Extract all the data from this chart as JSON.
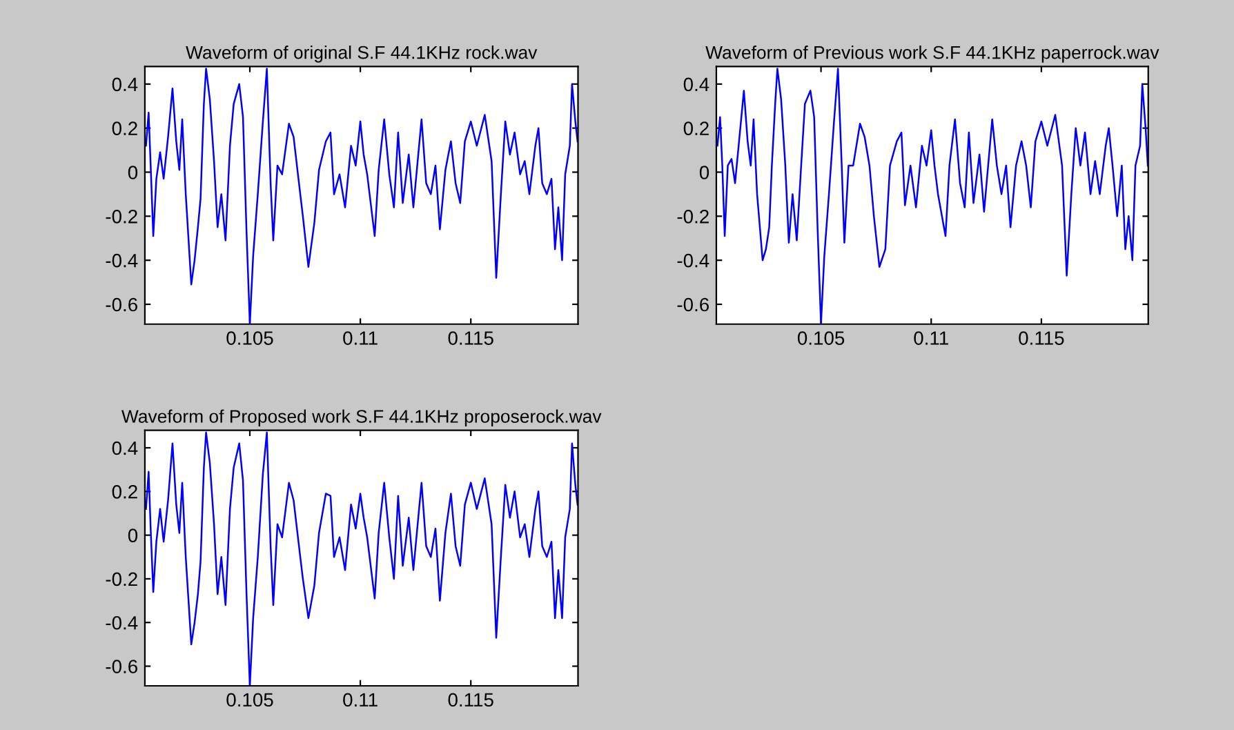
{
  "chart_data": [
    {
      "type": "line",
      "title": "Waveform of original S.F 44.1KHz rock.wav",
      "xlim": [
        0.10025,
        0.11985
      ],
      "ylim": [
        -0.69,
        0.48
      ],
      "xticks": [
        0.105,
        0.11,
        0.115
      ],
      "yticks": [
        -0.6,
        -0.4,
        -0.2,
        0,
        0.2,
        0.4
      ],
      "grid": false,
      "legend": false,
      "series": [
        {
          "color": "#0000ff",
          "x": [
            0.1003,
            0.10042,
            0.10052,
            0.10063,
            0.10077,
            0.10094,
            0.1011,
            0.1013,
            0.1015,
            0.10167,
            0.10181,
            0.10194,
            0.1021,
            0.10235,
            0.1025,
            0.10265,
            0.10277,
            0.10292,
            0.10302,
            0.10319,
            0.10338,
            0.10354,
            0.10371,
            0.1039,
            0.1041,
            0.10427,
            0.10452,
            0.10469,
            0.10485,
            0.105,
            0.10515,
            0.10536,
            0.10559,
            0.10577,
            0.10594,
            0.10606,
            0.10625,
            0.10646,
            0.10677,
            0.10698,
            0.1072,
            0.1074,
            0.10765,
            0.10792,
            0.10813,
            0.10844,
            0.10865,
            0.10881,
            0.10906,
            0.10931,
            0.10958,
            0.10979,
            0.11,
            0.11015,
            0.11031,
            0.11065,
            0.11083,
            0.11108,
            0.11131,
            0.11152,
            0.11171,
            0.11192,
            0.11219,
            0.1124,
            0.11277,
            0.11298,
            0.11319,
            0.1134,
            0.1136,
            0.11385,
            0.1141,
            0.11431,
            0.11452,
            0.11473,
            0.115,
            0.11527,
            0.11563,
            0.11594,
            0.11615,
            0.11636,
            0.11656,
            0.11677,
            0.11698,
            0.11723,
            0.11744,
            0.11765,
            0.11792,
            0.11806,
            0.11823,
            0.11844,
            0.11865,
            0.11881,
            0.11896,
            0.11913,
            0.11927,
            0.11948,
            0.11958,
            0.11973,
            0.11983
          ],
          "values": [
            0.12,
            0.27,
            0.01,
            -0.29,
            -0.03,
            0.09,
            -0.03,
            0.16,
            0.38,
            0.14,
            0.01,
            0.24,
            -0.1,
            -0.51,
            -0.4,
            -0.25,
            -0.12,
            0.31,
            0.47,
            0.33,
            0.05,
            -0.25,
            -0.1,
            -0.31,
            0.12,
            0.31,
            0.4,
            0.25,
            -0.27,
            -0.69,
            -0.38,
            -0.1,
            0.23,
            0.47,
            -0.05,
            -0.31,
            0.03,
            -0.01,
            0.22,
            0.16,
            -0.03,
            -0.2,
            -0.43,
            -0.23,
            0.01,
            0.14,
            0.18,
            -0.1,
            -0.01,
            -0.16,
            0.12,
            0.03,
            0.23,
            0.08,
            -0.01,
            -0.29,
            0.01,
            0.24,
            -0.01,
            -0.16,
            0.18,
            -0.14,
            0.08,
            -0.16,
            0.24,
            -0.05,
            -0.1,
            0.03,
            -0.26,
            0.01,
            0.14,
            -0.05,
            -0.14,
            0.14,
            0.23,
            0.12,
            0.26,
            0.05,
            -0.48,
            -0.1,
            0.23,
            0.08,
            0.18,
            -0.01,
            0.05,
            -0.1,
            0.12,
            0.2,
            -0.05,
            -0.1,
            -0.03,
            -0.35,
            -0.16,
            -0.4,
            -0.01,
            0.12,
            0.4,
            0.23,
            0.14
          ]
        }
      ]
    },
    {
      "type": "line",
      "title": "Waveform of Previous work S.F 44.1KHz paperrock.wav",
      "xlim": [
        0.10025,
        0.11985
      ],
      "ylim": [
        -0.69,
        0.48
      ],
      "xticks": [
        0.105,
        0.11,
        0.115
      ],
      "yticks": [
        -0.6,
        -0.4,
        -0.2,
        0,
        0.2,
        0.4
      ],
      "grid": false,
      "legend": false,
      "series": [
        {
          "color": "#0000ff",
          "x": [
            0.1003,
            0.10042,
            0.10052,
            0.10063,
            0.10077,
            0.10094,
            0.1011,
            0.1013,
            0.1015,
            0.10167,
            0.10181,
            0.10194,
            0.1021,
            0.10235,
            0.1025,
            0.10265,
            0.10277,
            0.10292,
            0.10302,
            0.10319,
            0.10338,
            0.10354,
            0.10371,
            0.1039,
            0.1041,
            0.10427,
            0.10452,
            0.10469,
            0.10485,
            0.105,
            0.10515,
            0.10536,
            0.10559,
            0.10577,
            0.10594,
            0.10606,
            0.10625,
            0.10646,
            0.10677,
            0.10698,
            0.1072,
            0.1074,
            0.10765,
            0.10792,
            0.10813,
            0.10844,
            0.10865,
            0.10881,
            0.10906,
            0.10931,
            0.10958,
            0.10979,
            0.11,
            0.11015,
            0.11031,
            0.11065,
            0.11083,
            0.11108,
            0.11131,
            0.11152,
            0.11171,
            0.11192,
            0.11219,
            0.1124,
            0.11277,
            0.11298,
            0.11319,
            0.1134,
            0.1136,
            0.11385,
            0.1141,
            0.11431,
            0.11452,
            0.11473,
            0.115,
            0.11527,
            0.11563,
            0.11594,
            0.11615,
            0.11636,
            0.11656,
            0.11677,
            0.11698,
            0.11723,
            0.11744,
            0.11765,
            0.11792,
            0.11806,
            0.11823,
            0.11844,
            0.11865,
            0.11881,
            0.11896,
            0.11913,
            0.11927,
            0.11948,
            0.11958,
            0.11973,
            0.11983
          ],
          "values": [
            0.12,
            0.25,
            0.03,
            -0.29,
            0.03,
            0.06,
            -0.05,
            0.16,
            0.37,
            0.14,
            0.03,
            0.24,
            -0.1,
            -0.4,
            -0.35,
            -0.25,
            0.03,
            0.31,
            0.47,
            0.33,
            0.03,
            -0.32,
            -0.1,
            -0.31,
            0.03,
            0.31,
            0.37,
            0.25,
            -0.27,
            -0.69,
            -0.38,
            -0.1,
            0.23,
            0.47,
            0.03,
            -0.32,
            0.03,
            0.03,
            0.22,
            0.16,
            0.03,
            -0.2,
            -0.43,
            -0.35,
            0.03,
            0.14,
            0.18,
            -0.15,
            0.03,
            -0.16,
            0.12,
            0.03,
            0.19,
            0.03,
            -0.1,
            -0.29,
            0.03,
            0.24,
            -0.05,
            -0.16,
            0.18,
            -0.14,
            0.08,
            -0.18,
            0.24,
            0.03,
            -0.1,
            0.03,
            -0.25,
            0.03,
            0.14,
            0.03,
            -0.16,
            0.14,
            0.23,
            0.12,
            0.26,
            0.03,
            -0.47,
            -0.1,
            0.2,
            0.03,
            0.18,
            -0.1,
            0.05,
            -0.1,
            0.12,
            0.2,
            0.03,
            -0.2,
            0.03,
            -0.35,
            -0.2,
            -0.4,
            0.03,
            0.12,
            0.4,
            0.2,
            0.03
          ]
        }
      ]
    },
    {
      "type": "line",
      "title": "Waveform of Proposed work S.F 44.1KHz proposerock.wav",
      "xlim": [
        0.10025,
        0.11985
      ],
      "ylim": [
        -0.69,
        0.48
      ],
      "xticks": [
        0.105,
        0.11,
        0.115
      ],
      "yticks": [
        -0.6,
        -0.4,
        -0.2,
        0,
        0.2,
        0.4
      ],
      "grid": false,
      "legend": false,
      "series": [
        {
          "color": "#0000ff",
          "x": [
            0.1003,
            0.10042,
            0.10052,
            0.10063,
            0.10077,
            0.10094,
            0.1011,
            0.1013,
            0.1015,
            0.10167,
            0.10181,
            0.10194,
            0.1021,
            0.10235,
            0.1025,
            0.10265,
            0.10277,
            0.10292,
            0.10302,
            0.10319,
            0.10338,
            0.10354,
            0.10371,
            0.1039,
            0.1041,
            0.10427,
            0.10452,
            0.10469,
            0.10485,
            0.105,
            0.10515,
            0.10536,
            0.10559,
            0.10577,
            0.10594,
            0.10606,
            0.10625,
            0.10646,
            0.10677,
            0.10698,
            0.1072,
            0.1074,
            0.10765,
            0.10792,
            0.10813,
            0.10844,
            0.10865,
            0.10881,
            0.10906,
            0.10931,
            0.10958,
            0.10979,
            0.11,
            0.11015,
            0.11031,
            0.11065,
            0.11083,
            0.11108,
            0.11131,
            0.11152,
            0.11171,
            0.11192,
            0.11219,
            0.1124,
            0.11277,
            0.11298,
            0.11319,
            0.1134,
            0.1136,
            0.11385,
            0.1141,
            0.11431,
            0.11452,
            0.11473,
            0.115,
            0.11527,
            0.11563,
            0.11594,
            0.11615,
            0.11636,
            0.11656,
            0.11677,
            0.11698,
            0.11723,
            0.11744,
            0.11765,
            0.11792,
            0.11806,
            0.11823,
            0.11844,
            0.11865,
            0.11881,
            0.11896,
            0.11913,
            0.11927,
            0.11948,
            0.11958,
            0.11973,
            0.11983
          ],
          "values": [
            0.12,
            0.29,
            0.01,
            -0.26,
            -0.03,
            0.12,
            -0.03,
            0.16,
            0.42,
            0.14,
            0.01,
            0.24,
            -0.1,
            -0.5,
            -0.4,
            -0.27,
            -0.12,
            0.31,
            0.47,
            0.33,
            0.05,
            -0.27,
            -0.1,
            -0.32,
            0.12,
            0.31,
            0.42,
            0.25,
            -0.27,
            -0.69,
            -0.38,
            -0.1,
            0.28,
            0.47,
            -0.05,
            -0.32,
            0.05,
            -0.01,
            0.24,
            0.16,
            -0.03,
            -0.2,
            -0.38,
            -0.23,
            0.01,
            0.19,
            0.18,
            -0.1,
            -0.01,
            -0.16,
            0.14,
            0.03,
            0.19,
            0.08,
            -0.01,
            -0.29,
            0.01,
            0.24,
            -0.01,
            -0.2,
            0.18,
            -0.14,
            0.08,
            -0.16,
            0.24,
            -0.05,
            -0.1,
            0.03,
            -0.3,
            0.01,
            0.19,
            -0.05,
            -0.14,
            0.14,
            0.24,
            0.12,
            0.26,
            0.05,
            -0.47,
            -0.1,
            0.23,
            0.08,
            0.2,
            -0.01,
            0.05,
            -0.1,
            0.12,
            0.2,
            -0.05,
            -0.1,
            -0.03,
            -0.38,
            -0.16,
            -0.38,
            -0.01,
            0.12,
            0.42,
            0.23,
            0.14
          ]
        }
      ]
    }
  ]
}
